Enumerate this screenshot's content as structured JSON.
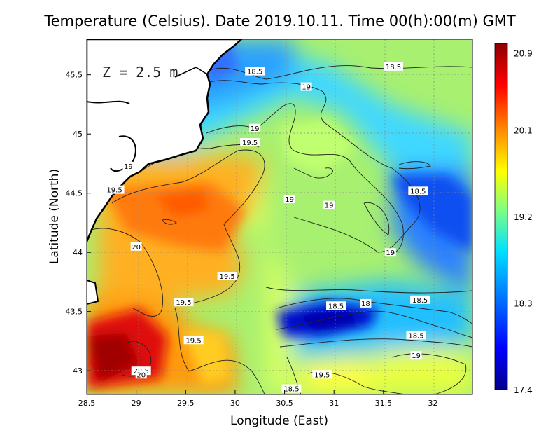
{
  "title": "Temperature (Celsius). Date 2019.10.11. Time 00(h):00(m)  GMT",
  "depth_note": "Z = 2.5 m",
  "chart_data": {
    "type": "heatmap",
    "title": "Temperature (Celsius). Date 2019.10.11. Time 00(h):00(m)  GMT",
    "xlabel": "Longitude (East)",
    "ylabel": "Latitude (North)",
    "xlim": [
      28.5,
      32.4
    ],
    "ylim": [
      42.8,
      45.8
    ],
    "x_ticks": [
      "28.5",
      "29",
      "29.5",
      "30",
      "30.5",
      "31",
      "31.5",
      "32"
    ],
    "x_tick_values": [
      28.5,
      29,
      29.5,
      30,
      30.5,
      31,
      31.5,
      32
    ],
    "y_ticks": [
      "43",
      "43.5",
      "44",
      "44.5",
      "45",
      "45.5"
    ],
    "y_tick_values": [
      43,
      43.5,
      44,
      44.5,
      45,
      45.5
    ],
    "grid": true,
    "colorbar": {
      "min": 17.4,
      "max": 21.0,
      "tick_labels": [
        "20.9",
        "20.1",
        "19.2",
        "18.3",
        "17.4"
      ],
      "tick_values": [
        20.9,
        20.1,
        19.2,
        18.3,
        17.4
      ],
      "colors": [
        "#00008c",
        "#0000ff",
        "#0080ff",
        "#00e0ff",
        "#80ff80",
        "#ffff00",
        "#ff8000",
        "#ff0000",
        "#8c0000"
      ]
    },
    "contour_labels": [
      {
        "text": "18.5",
        "lon": 30.2,
        "lat": 45.53
      },
      {
        "text": "19",
        "lon": 30.72,
        "lat": 45.4
      },
      {
        "text": "18.5",
        "lon": 31.6,
        "lat": 45.57
      },
      {
        "text": "19",
        "lon": 30.2,
        "lat": 45.05
      },
      {
        "text": "19.5",
        "lon": 30.15,
        "lat": 44.93
      },
      {
        "text": "19",
        "lon": 28.92,
        "lat": 44.73
      },
      {
        "text": "19.5",
        "lon": 28.78,
        "lat": 44.53
      },
      {
        "text": "19",
        "lon": 30.55,
        "lat": 44.45
      },
      {
        "text": "18.5",
        "lon": 31.85,
        "lat": 44.52
      },
      {
        "text": "19",
        "lon": 30.95,
        "lat": 44.4
      },
      {
        "text": "20",
        "lon": 29.0,
        "lat": 44.05
      },
      {
        "text": "19",
        "lon": 31.57,
        "lat": 44.0
      },
      {
        "text": "19.5",
        "lon": 29.92,
        "lat": 43.8
      },
      {
        "text": "19.5",
        "lon": 29.48,
        "lat": 43.58
      },
      {
        "text": "18.5",
        "lon": 31.02,
        "lat": 43.55
      },
      {
        "text": "18",
        "lon": 31.32,
        "lat": 43.57
      },
      {
        "text": "18.5",
        "lon": 31.87,
        "lat": 43.6
      },
      {
        "text": "18.5",
        "lon": 31.83,
        "lat": 43.3
      },
      {
        "text": "19.5",
        "lon": 29.58,
        "lat": 43.26
      },
      {
        "text": "19",
        "lon": 31.83,
        "lat": 43.13
      },
      {
        "text": "20.5",
        "lon": 29.05,
        "lat": 43.0
      },
      {
        "text": "20",
        "lon": 29.05,
        "lat": 42.97
      },
      {
        "text": "19.5",
        "lon": 30.88,
        "lat": 42.97
      },
      {
        "text": "18.5",
        "lon": 30.57,
        "lat": 42.85
      }
    ]
  }
}
